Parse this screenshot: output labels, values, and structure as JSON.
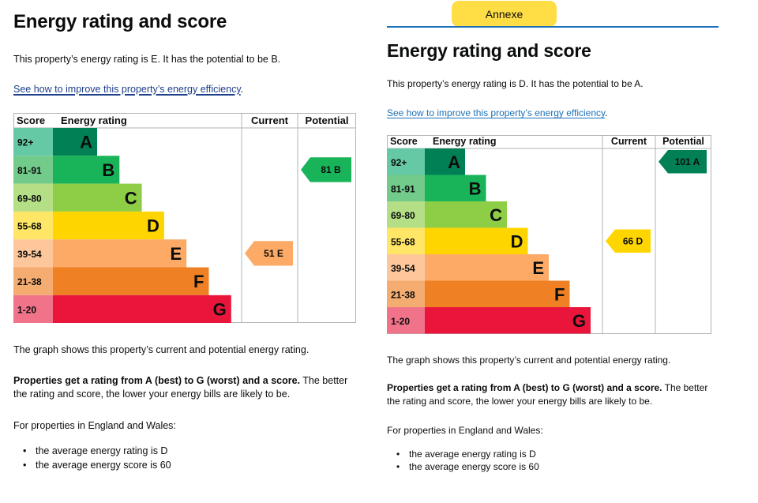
{
  "left": {
    "heading": "Energy rating and score",
    "intro": "This property’s energy rating is E. It has the potential to be B.",
    "link_text": "See how to improve this property’s energy efficiency",
    "link_trailing": ".",
    "graph_note": "The graph shows this property’s current and potential energy rating.",
    "ratings_bold": "Properties get a rating from A (best) to G (worst) and a score.",
    "ratings_rest": " The better the rating and score, the lower your energy bills are likely to be.",
    "england_wales": "For properties in England and Wales:",
    "bullets": [
      "the average energy rating is D",
      "the average energy score is 60"
    ]
  },
  "right": {
    "annexe_label": "Annexe",
    "heading": "Energy rating and score",
    "intro": "This property’s energy rating is D. It has the potential to be A.",
    "link_text": "See how to improve this property’s energy efficiency",
    "link_trailing": ".",
    "graph_note": "The graph shows this property’s current and potential energy rating.",
    "ratings_bold": "Properties get a rating from A (best) to G (worst) and a score.",
    "ratings_rest": " The better the rating and score, the lower your energy bills are likely to be.",
    "england_wales": "For properties in England and Wales:",
    "bullets": [
      "the average energy rating is D",
      "the average energy score is 60"
    ]
  },
  "colors": {
    "A": "#008054",
    "B": "#19b459",
    "C": "#8dce46",
    "D": "#ffd500",
    "E": "#fcaa65",
    "F": "#ef8023",
    "G": "#e9153b",
    "link": "#1d70b8",
    "annexe_tag": "#ffdd44"
  },
  "chart_data": [
    {
      "type": "bar",
      "headers": {
        "score": "Score",
        "rating": "Energy rating",
        "current": "Current",
        "potential": "Potential"
      },
      "bands": [
        {
          "score": "92+",
          "letter": "A",
          "color": "#008054",
          "light": "#64c9a4"
        },
        {
          "score": "81-91",
          "letter": "B",
          "color": "#19b459",
          "light": "#72ca8b"
        },
        {
          "score": "69-80",
          "letter": "C",
          "color": "#8dce46",
          "light": "#b4df86"
        },
        {
          "score": "55-68",
          "letter": "D",
          "color": "#ffd500",
          "light": "#ffe666"
        },
        {
          "score": "39-54",
          "letter": "E",
          "color": "#fcaa65",
          "light": "#fdc79b"
        },
        {
          "score": "21-38",
          "letter": "F",
          "color": "#ef8023",
          "light": "#f4ac71"
        },
        {
          "score": "1-20",
          "letter": "G",
          "color": "#e9153b",
          "light": "#f0738a"
        }
      ],
      "current": {
        "score": 51,
        "letter": "E",
        "label": "51 E"
      },
      "potential": {
        "score": 81,
        "letter": "B",
        "label": "81 B"
      }
    },
    {
      "type": "bar",
      "headers": {
        "score": "Score",
        "rating": "Energy rating",
        "current": "Current",
        "potential": "Potential"
      },
      "bands": [
        {
          "score": "92+",
          "letter": "A",
          "color": "#008054",
          "light": "#64c9a4"
        },
        {
          "score": "81-91",
          "letter": "B",
          "color": "#19b459",
          "light": "#72ca8b"
        },
        {
          "score": "69-80",
          "letter": "C",
          "color": "#8dce46",
          "light": "#b4df86"
        },
        {
          "score": "55-68",
          "letter": "D",
          "color": "#ffd500",
          "light": "#ffe666"
        },
        {
          "score": "39-54",
          "letter": "E",
          "color": "#fcaa65",
          "light": "#fdc79b"
        },
        {
          "score": "21-38",
          "letter": "F",
          "color": "#ef8023",
          "light": "#f4ac71"
        },
        {
          "score": "1-20",
          "letter": "G",
          "color": "#e9153b",
          "light": "#f0738a"
        }
      ],
      "current": {
        "score": 66,
        "letter": "D",
        "label": "66 D"
      },
      "potential": {
        "score": 101,
        "letter": "A",
        "label": "101 A"
      }
    }
  ]
}
